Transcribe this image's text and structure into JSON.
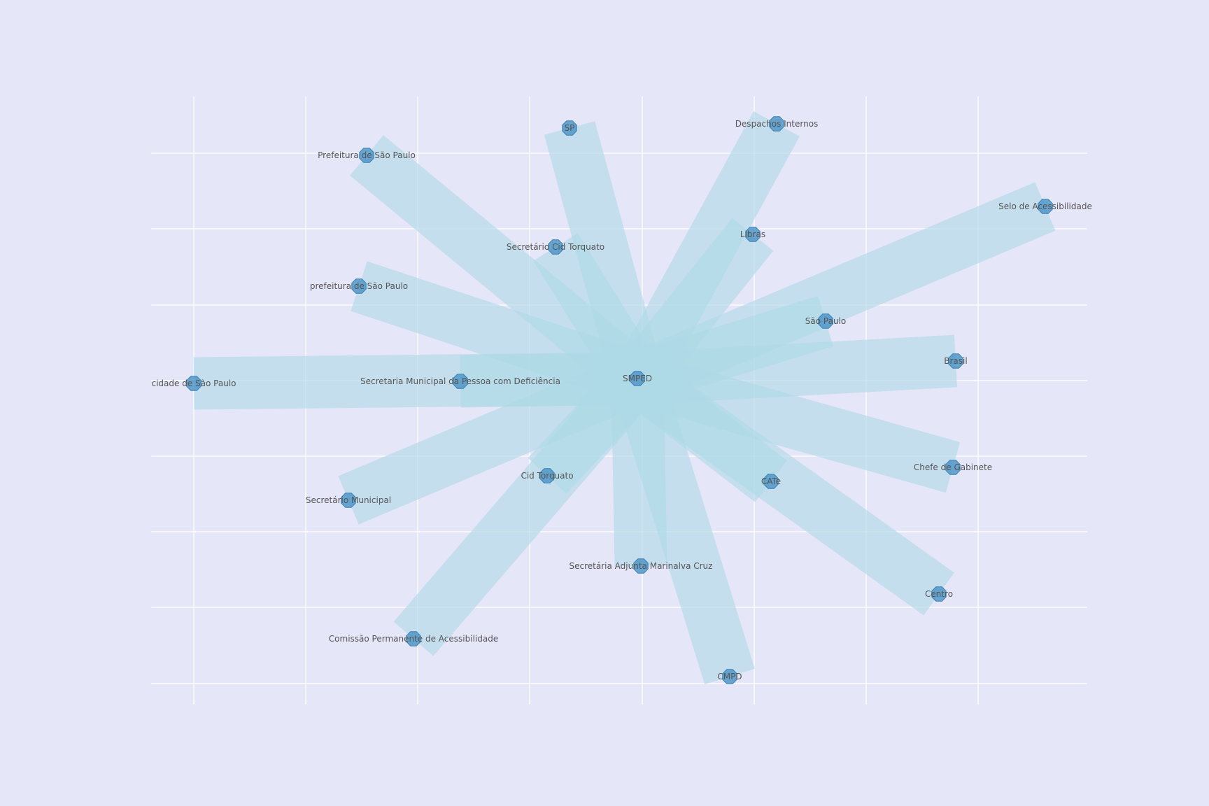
{
  "graph": {
    "type": "network",
    "center": "SMPED",
    "colors": {
      "background": "#e6e6f9",
      "grid": "#ffffff",
      "edge": "#add8e6",
      "node": "#5096c8",
      "label": "#555555"
    },
    "node_marker": "octagon",
    "nodes": [
      {
        "id": "smped",
        "label": "SMPED"
      },
      {
        "id": "sp",
        "label": "SP"
      },
      {
        "id": "despachos",
        "label": "Despachos Internos"
      },
      {
        "id": "prefeitura",
        "label": "Prefeitura de São Paulo"
      },
      {
        "id": "selo",
        "label": "Selo de Acessibilidade"
      },
      {
        "id": "libras",
        "label": "Libras"
      },
      {
        "id": "sec-cid",
        "label": "Secretário Cid Torquato"
      },
      {
        "id": "prefeitura-l",
        "label": "prefeitura de São Paulo"
      },
      {
        "id": "saopaulo",
        "label": "São Paulo"
      },
      {
        "id": "brasil",
        "label": "Brasil"
      },
      {
        "id": "cidade",
        "label": "cidade de São Paulo"
      },
      {
        "id": "secretaria",
        "label": "Secretaria Municipal da Pessoa com Deficiência"
      },
      {
        "id": "chefe",
        "label": "Chefe de Gabinete"
      },
      {
        "id": "cid",
        "label": "Cid Torquato"
      },
      {
        "id": "cate",
        "label": "CATe"
      },
      {
        "id": "secmun",
        "label": "Secretário Municipal"
      },
      {
        "id": "adjunta",
        "label": "Secretária Adjunta Marinalva Cruz"
      },
      {
        "id": "centro",
        "label": "Centro"
      },
      {
        "id": "comissao",
        "label": "Comissão Permanente de Acessibilidade"
      },
      {
        "id": "cmpd",
        "label": "CMPD"
      }
    ],
    "edges": [
      {
        "source": "smped",
        "target": "sp"
      },
      {
        "source": "smped",
        "target": "despachos"
      },
      {
        "source": "smped",
        "target": "prefeitura"
      },
      {
        "source": "smped",
        "target": "selo"
      },
      {
        "source": "smped",
        "target": "libras"
      },
      {
        "source": "smped",
        "target": "sec-cid"
      },
      {
        "source": "smped",
        "target": "prefeitura-l"
      },
      {
        "source": "smped",
        "target": "saopaulo"
      },
      {
        "source": "smped",
        "target": "brasil"
      },
      {
        "source": "smped",
        "target": "cidade"
      },
      {
        "source": "smped",
        "target": "secretaria"
      },
      {
        "source": "smped",
        "target": "chefe"
      },
      {
        "source": "smped",
        "target": "cid"
      },
      {
        "source": "smped",
        "target": "cate"
      },
      {
        "source": "smped",
        "target": "secmun"
      },
      {
        "source": "smped",
        "target": "adjunta"
      },
      {
        "source": "smped",
        "target": "centro"
      },
      {
        "source": "smped",
        "target": "comissao"
      },
      {
        "source": "smped",
        "target": "cmpd"
      }
    ]
  }
}
